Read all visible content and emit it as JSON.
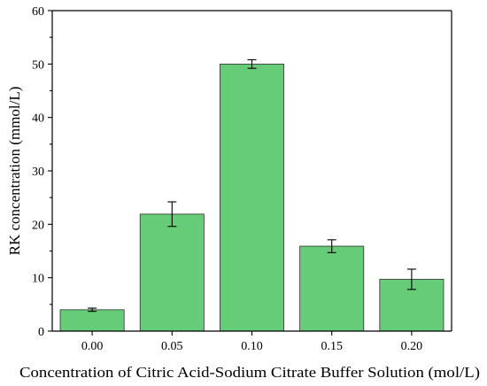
{
  "chart_data": {
    "type": "bar",
    "title": "",
    "xlabel": "Concentration of Citric Acid-Sodium Citrate Buffer Solution (mol/L)",
    "ylabel": "RK concentration (mmol/L)",
    "categories": [
      "0.00",
      "0.05",
      "0.10",
      "0.15",
      "0.20"
    ],
    "values": [
      4.0,
      21.9,
      50.0,
      15.9,
      9.7
    ],
    "errors": [
      0.3,
      2.3,
      0.8,
      1.2,
      1.9
    ],
    "ylim": [
      0,
      60
    ],
    "yticks": [
      0,
      10,
      20,
      30,
      40,
      50,
      60
    ],
    "ytick_labels": [
      "0",
      "10",
      "20",
      "30",
      "40",
      "50",
      "60"
    ],
    "grid": false,
    "legend": "none",
    "bar_color": "#66cc77"
  }
}
